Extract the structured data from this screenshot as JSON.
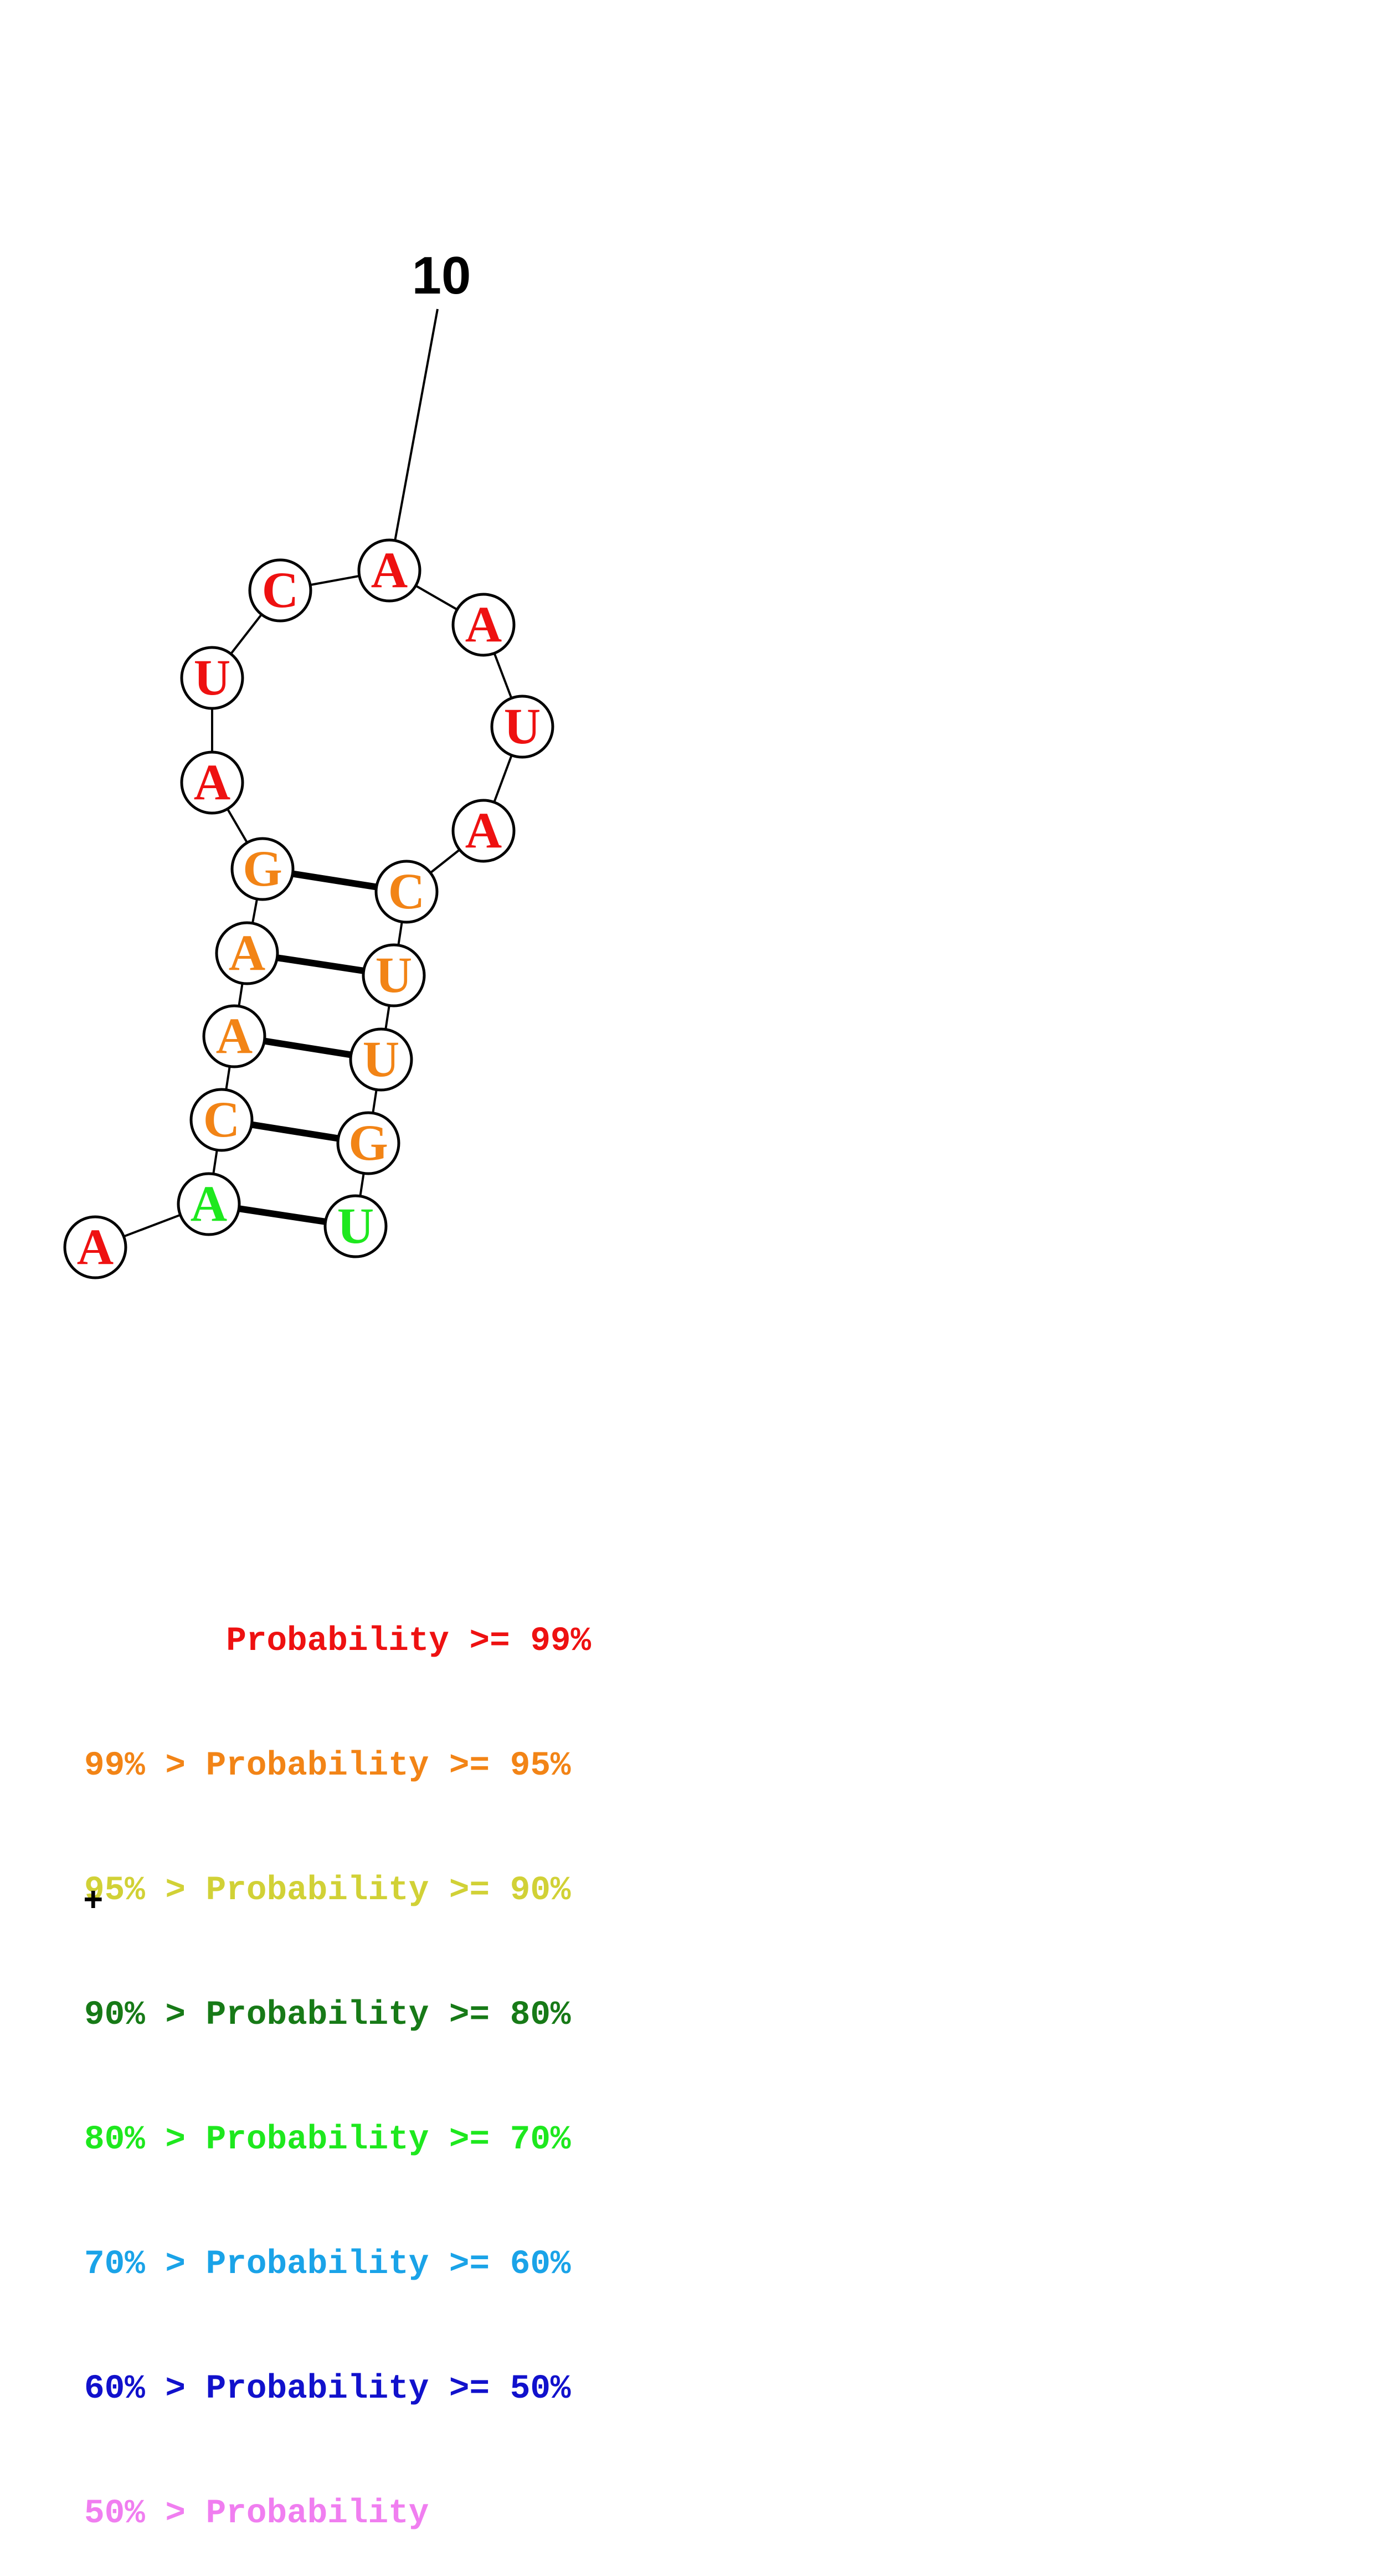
{
  "structure": {
    "sequence": [
      "A",
      "A",
      "C",
      "A",
      "A",
      "G",
      "A",
      "U",
      "C",
      "A",
      "A",
      "U",
      "A",
      "C",
      "U",
      "U",
      "G",
      "U"
    ],
    "pairs": [
      [
        2,
        18
      ],
      [
        3,
        17
      ],
      [
        4,
        16
      ],
      [
        5,
        15
      ],
      [
        6,
        14
      ]
    ],
    "position_label": "10",
    "colors_by_category": {
      "p99": "#ee1111",
      "p95": "#f28416",
      "p70": "#1ee81e"
    },
    "nucleotide_categories": [
      "p99",
      "p70",
      "p95",
      "p95",
      "p95",
      "p95",
      "p99",
      "p99",
      "p99",
      "p99",
      "p99",
      "p99",
      "p99",
      "p95",
      "p95",
      "p95",
      "p95",
      "p70"
    ]
  },
  "legend": {
    "rows": [
      {
        "text": "       Probability >= 99%",
        "color": "#ee1111"
      },
      {
        "text": "99% > Probability >= 95%",
        "color": "#f28416"
      },
      {
        "text": "95% > Probability >= 90%",
        "color": "#d1d136"
      },
      {
        "text": "90% > Probability >= 80%",
        "color": "#177a17"
      },
      {
        "text": "80% > Probability >= 70%",
        "color": "#1ee81e"
      },
      {
        "text": "70% > Probability >= 60%",
        "color": "#1aa3e8"
      },
      {
        "text": "60% > Probability >= 50%",
        "color": "#1111cc"
      },
      {
        "text": "50% > Probability",
        "color": "#f07ef0"
      }
    ],
    "plus": "+"
  }
}
